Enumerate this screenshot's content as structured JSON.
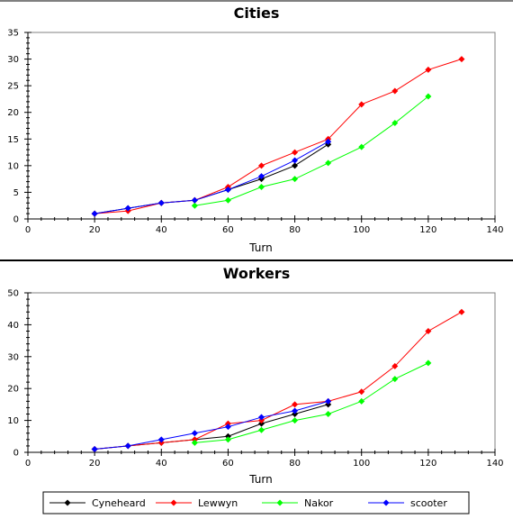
{
  "colors": {
    "Cyneheard": "#000000",
    "Lewwyn": "#ff0000",
    "Nakor": "#00ff00",
    "scooter": "#0000ff"
  },
  "legend": {
    "placement": "bottom",
    "entries": [
      "Cyneheard",
      "Lewwyn",
      "Nakor",
      "scooter"
    ]
  },
  "chart_data": [
    {
      "type": "line",
      "title": "Cities",
      "xlabel": "Turn",
      "ylabel": "",
      "xlim": [
        0,
        140
      ],
      "ylim": [
        0,
        35
      ],
      "xticks": [
        0,
        20,
        40,
        60,
        80,
        100,
        120,
        140
      ],
      "yticks": [
        0,
        5,
        10,
        15,
        20,
        25,
        30,
        35
      ],
      "grid": false,
      "series": [
        {
          "name": "Cyneheard",
          "x": [
            20,
            30,
            40,
            50,
            60,
            70,
            80,
            90
          ],
          "y": [
            1,
            2,
            3,
            3.5,
            5.5,
            7.5,
            10,
            14
          ]
        },
        {
          "name": "Lewwyn",
          "x": [
            20,
            30,
            40,
            50,
            60,
            70,
            80,
            90,
            100,
            110,
            120,
            130
          ],
          "y": [
            1,
            1.5,
            3,
            3.5,
            6,
            10,
            12.5,
            15,
            21.5,
            24,
            28,
            30
          ]
        },
        {
          "name": "Nakor",
          "x": [
            50,
            60,
            70,
            80,
            90,
            100,
            110,
            120
          ],
          "y": [
            2.5,
            3.5,
            6,
            7.5,
            10.5,
            13.5,
            18,
            23
          ]
        },
        {
          "name": "scooter",
          "x": [
            20,
            30,
            40,
            50,
            60,
            70,
            80,
            90
          ],
          "y": [
            1,
            2,
            3,
            3.5,
            5.5,
            8,
            11,
            14.5
          ]
        }
      ]
    },
    {
      "type": "line",
      "title": "Workers",
      "xlabel": "Turn",
      "ylabel": "",
      "xlim": [
        0,
        140
      ],
      "ylim": [
        0,
        50
      ],
      "xticks": [
        0,
        20,
        40,
        60,
        80,
        100,
        120,
        140
      ],
      "yticks": [
        0,
        10,
        20,
        30,
        40,
        50
      ],
      "grid": false,
      "series": [
        {
          "name": "Cyneheard",
          "x": [
            20,
            30,
            40,
            50,
            60,
            70,
            80,
            90
          ],
          "y": [
            1,
            2,
            3,
            4,
            5,
            9,
            12,
            15
          ]
        },
        {
          "name": "Lewwyn",
          "x": [
            20,
            30,
            40,
            50,
            60,
            70,
            80,
            90,
            100,
            110,
            120,
            130
          ],
          "y": [
            1,
            2,
            3,
            4,
            9,
            10,
            15,
            16,
            19,
            27,
            38,
            44
          ]
        },
        {
          "name": "Nakor",
          "x": [
            50,
            60,
            70,
            80,
            90,
            100,
            110,
            120
          ],
          "y": [
            3,
            4,
            7,
            10,
            12,
            16,
            23,
            28
          ]
        },
        {
          "name": "scooter",
          "x": [
            20,
            30,
            40,
            50,
            60,
            70,
            80,
            90
          ],
          "y": [
            1,
            2,
            4,
            6,
            8,
            11,
            13,
            16
          ]
        }
      ]
    }
  ]
}
